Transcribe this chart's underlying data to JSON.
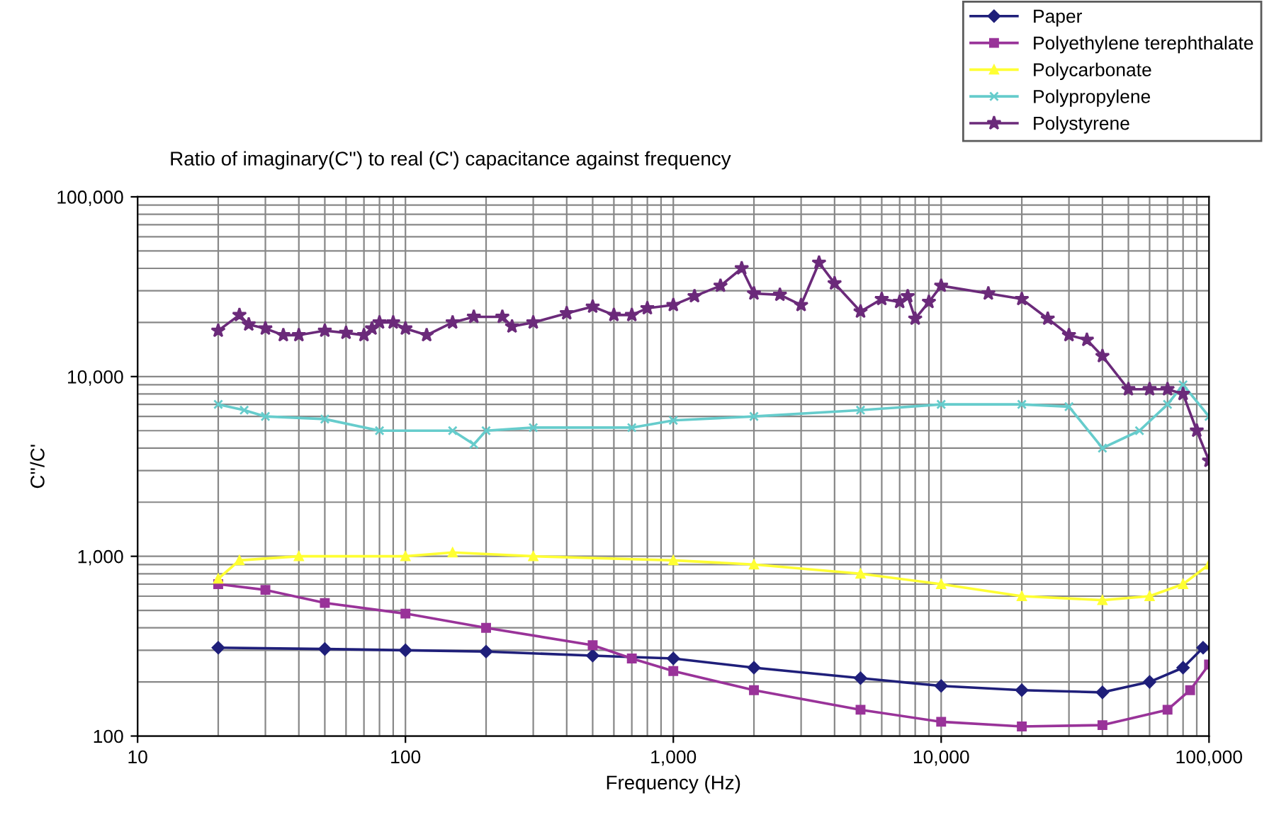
{
  "chart_data": {
    "type": "line",
    "title": "Ratio of imaginary(C'') to real (C') capacitance against frequency",
    "xlabel": "Frequency (Hz)",
    "ylabel": "C''/C'",
    "log": "xy",
    "grid": true,
    "legend": "top right",
    "xlim": [
      10,
      100000
    ],
    "ylim": [
      100,
      100000
    ],
    "xticks": [
      10,
      100,
      {
        "value": 1000,
        "label": "1,000"
      },
      {
        "value": 10000,
        "label": "10,000"
      },
      {
        "value": 100000,
        "label": "100,000"
      }
    ],
    "yticks": [
      100,
      {
        "value": 1000,
        "label": "1,000"
      },
      {
        "value": 10000,
        "label": "10,000"
      },
      {
        "value": 100000,
        "label": "100,000"
      }
    ],
    "series": [
      {
        "name": "Paper",
        "color": "#1f1f7a",
        "marker": "diamond",
        "x": [
          20,
          50,
          100,
          200,
          500,
          1000,
          2000,
          5000,
          10000,
          20000,
          40000,
          60000,
          80000,
          95000
        ],
        "values": [
          310,
          305,
          300,
          295,
          280,
          270,
          240,
          210,
          190,
          180,
          175,
          200,
          240,
          310
        ]
      },
      {
        "name": "Polyethylene terephthalate",
        "color": "#993399",
        "marker": "square",
        "x": [
          20,
          30,
          50,
          100,
          200,
          500,
          700,
          1000,
          2000,
          5000,
          10000,
          20000,
          40000,
          70000,
          85000,
          100000
        ],
        "values": [
          700,
          650,
          550,
          480,
          400,
          320,
          270,
          230,
          180,
          140,
          120,
          113,
          115,
          140,
          180,
          250
        ]
      },
      {
        "name": "Polycarbonate",
        "color": "#ffff33",
        "marker": "triangle",
        "x": [
          20,
          24,
          40,
          100,
          150,
          300,
          1000,
          2000,
          5000,
          10000,
          20000,
          40000,
          60000,
          80000,
          100000
        ],
        "values": [
          750,
          950,
          1000,
          1000,
          1050,
          1000,
          950,
          900,
          800,
          700,
          600,
          570,
          600,
          700,
          900
        ]
      },
      {
        "name": "Polypropylene",
        "color": "#66cccc",
        "marker": "cross",
        "x": [
          20,
          25,
          30,
          50,
          80,
          150,
          180,
          200,
          300,
          700,
          1000,
          2000,
          5000,
          10000,
          20000,
          30000,
          40000,
          55000,
          70000,
          80000,
          100000
        ],
        "values": [
          7000,
          6500,
          6000,
          5800,
          5000,
          5000,
          4200,
          5000,
          5200,
          5200,
          5700,
          6000,
          6500,
          7000,
          7000,
          6800,
          4000,
          5000,
          7000,
          9000,
          6000
        ]
      },
      {
        "name": "Polystyrene",
        "color": "#6b2a7a",
        "marker": "star",
        "x": [
          20,
          24,
          26,
          30,
          35,
          40,
          50,
          60,
          70,
          75,
          80,
          90,
          100,
          120,
          150,
          180,
          230,
          250,
          300,
          400,
          500,
          600,
          700,
          800,
          1000,
          1200,
          1500,
          1800,
          2000,
          2500,
          3000,
          3500,
          4000,
          5000,
          6000,
          7000,
          7500,
          8000,
          9000,
          10000,
          15000,
          20000,
          25000,
          30000,
          35000,
          40000,
          50000,
          60000,
          70000,
          80000,
          90000,
          100000
        ],
        "values": [
          18000,
          22000,
          19500,
          18500,
          17000,
          17000,
          18000,
          17500,
          17000,
          18500,
          20000,
          20000,
          18500,
          17000,
          20000,
          21500,
          21500,
          19000,
          20000,
          22500,
          24500,
          22000,
          22000,
          24000,
          25000,
          28000,
          32000,
          40000,
          29000,
          28500,
          25000,
          43000,
          33000,
          23000,
          27000,
          26000,
          28000,
          21000,
          26000,
          32000,
          29000,
          27000,
          21000,
          17000,
          16000,
          13000,
          8500,
          8500,
          8500,
          8000,
          5000,
          3400
        ]
      }
    ]
  }
}
